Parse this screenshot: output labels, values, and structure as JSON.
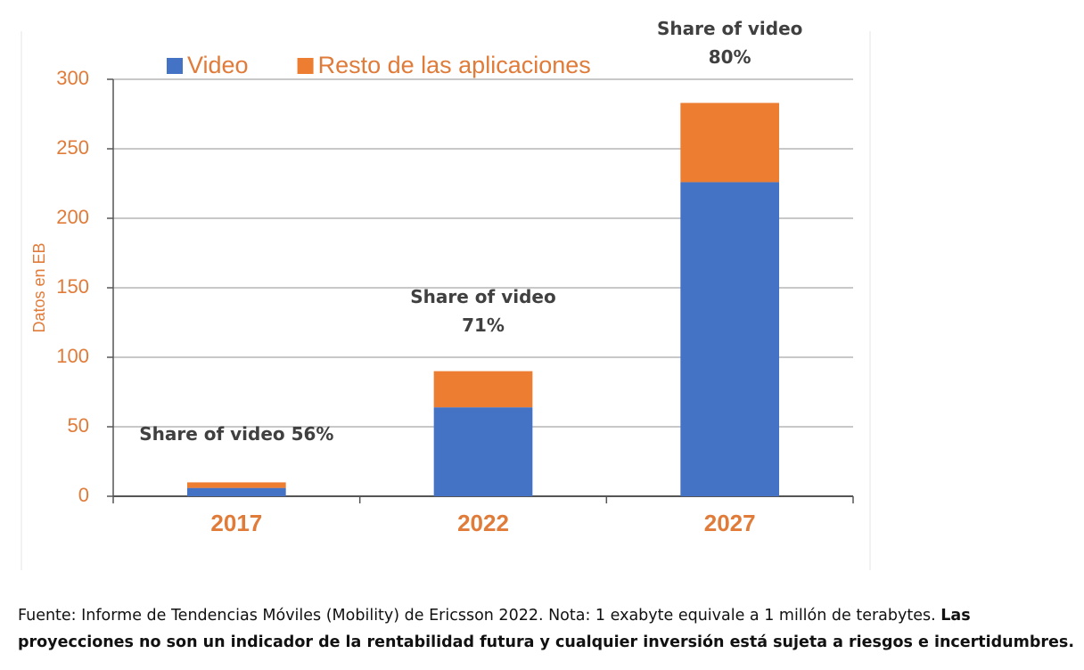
{
  "chart_data": {
    "type": "bar",
    "stacked": true,
    "ylabel": "Datos en EB",
    "categories": [
      "2017",
      "2022",
      "2027"
    ],
    "series": [
      {
        "name": "Video",
        "color": "#4472c4",
        "values": [
          6,
          64,
          226
        ]
      },
      {
        "name": "Resto de las aplicaciones",
        "color": "#ed7d31",
        "values": [
          4,
          26,
          57
        ]
      }
    ],
    "annotations": [
      [
        "Share of video 56%"
      ],
      [
        "Share of video",
        "71%"
      ],
      [
        "Share of video",
        "80%"
      ]
    ],
    "ylim": [
      0,
      300
    ],
    "yticks": [
      0,
      50,
      100,
      150,
      200,
      250,
      300
    ],
    "grid": true,
    "legend": "top"
  },
  "footer": {
    "text": "Fuente: Informe de Tendencias Móviles (Mobility) de Ericsson 2022. Nota: 1 exabyte equivale a 1 millón de terabytes.",
    "bold": "Las proyecciones no son un indicador de la rentabilidad futura y cualquier inversión está sujeta a riesgos e incertidumbres."
  }
}
